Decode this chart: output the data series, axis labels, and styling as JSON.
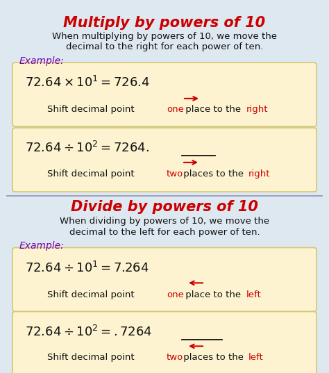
{
  "title_multiply": "Multiply by powers of 10",
  "title_divide": "Divide by powers of 10",
  "title_color": "#cc0000",
  "title_fontsize": 15,
  "bg_color": "#dde8f0",
  "box_color": "#fdf3d0",
  "box_edge_color": "#d4c870",
  "purple_color": "#7700aa",
  "red_color": "#cc0000",
  "black_color": "#111111",
  "divider_color": "#9999bb",
  "multiply_desc1": "When multiplying by powers of 10, we move the",
  "multiply_desc2": "decimal to the right for each power of ten.",
  "divide_desc1": "When dividing by powers of 10, we move the",
  "divide_desc2": "decimal to the left for each power of ten.",
  "example_label": "Example:",
  "desc_fontsize": 9.5,
  "eq_fontsize": 13,
  "shift_fontsize": 9.5,
  "example_fontsize": 10
}
